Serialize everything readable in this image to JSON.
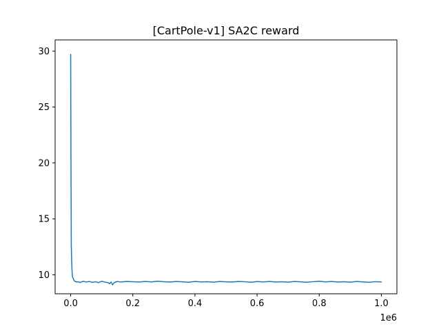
{
  "chart_data": {
    "type": "line",
    "title": "[CartPole-v1] SA2C reward",
    "xlabel": "",
    "ylabel": "",
    "x_offset_label": "1e6",
    "xlim": [
      -0.05,
      1.05
    ],
    "ylim": [
      8.3,
      31.0
    ],
    "x_ticks": [
      0.0,
      0.2,
      0.4,
      0.6,
      0.8,
      1.0
    ],
    "x_tick_labels": [
      "0.0",
      "0.2",
      "0.4",
      "0.6",
      "0.8",
      "1.0"
    ],
    "y_ticks": [
      10,
      15,
      20,
      25,
      30
    ],
    "y_tick_labels": [
      "10",
      "15",
      "20",
      "25",
      "30"
    ],
    "grid": false,
    "legend": "none",
    "series": [
      {
        "color": "#1f77b4",
        "x": [
          0.0,
          0.001,
          0.002,
          0.003,
          0.004,
          0.005,
          0.006,
          0.008,
          0.01,
          0.012,
          0.015,
          0.02,
          0.025,
          0.03,
          0.04,
          0.05,
          0.06,
          0.07,
          0.08,
          0.09,
          0.1,
          0.11,
          0.12,
          0.125,
          0.13,
          0.135,
          0.14,
          0.15,
          0.16,
          0.18,
          0.2,
          0.22,
          0.24,
          0.26,
          0.28,
          0.3,
          0.32,
          0.34,
          0.36,
          0.38,
          0.4,
          0.42,
          0.44,
          0.46,
          0.48,
          0.5,
          0.52,
          0.54,
          0.56,
          0.58,
          0.6,
          0.62,
          0.64,
          0.66,
          0.68,
          0.7,
          0.72,
          0.74,
          0.76,
          0.78,
          0.8,
          0.82,
          0.84,
          0.86,
          0.88,
          0.9,
          0.92,
          0.94,
          0.96,
          0.98,
          1.0
        ],
        "y": [
          29.7,
          20.0,
          12.7,
          11.5,
          10.6,
          10.1,
          9.8,
          9.7,
          9.55,
          9.45,
          9.4,
          9.35,
          9.38,
          9.3,
          9.42,
          9.35,
          9.4,
          9.32,
          9.38,
          9.3,
          9.42,
          9.35,
          9.3,
          9.2,
          9.35,
          9.1,
          9.3,
          9.4,
          9.35,
          9.4,
          9.38,
          9.35,
          9.4,
          9.36,
          9.42,
          9.38,
          9.35,
          9.4,
          9.37,
          9.33,
          9.4,
          9.36,
          9.38,
          9.34,
          9.4,
          9.37,
          9.35,
          9.4,
          9.38,
          9.33,
          9.39,
          9.36,
          9.4,
          9.35,
          9.38,
          9.34,
          9.4,
          9.37,
          9.33,
          9.38,
          9.42,
          9.36,
          9.4,
          9.35,
          9.38,
          9.34,
          9.4,
          9.36,
          9.33,
          9.38,
          9.36
        ]
      }
    ]
  }
}
